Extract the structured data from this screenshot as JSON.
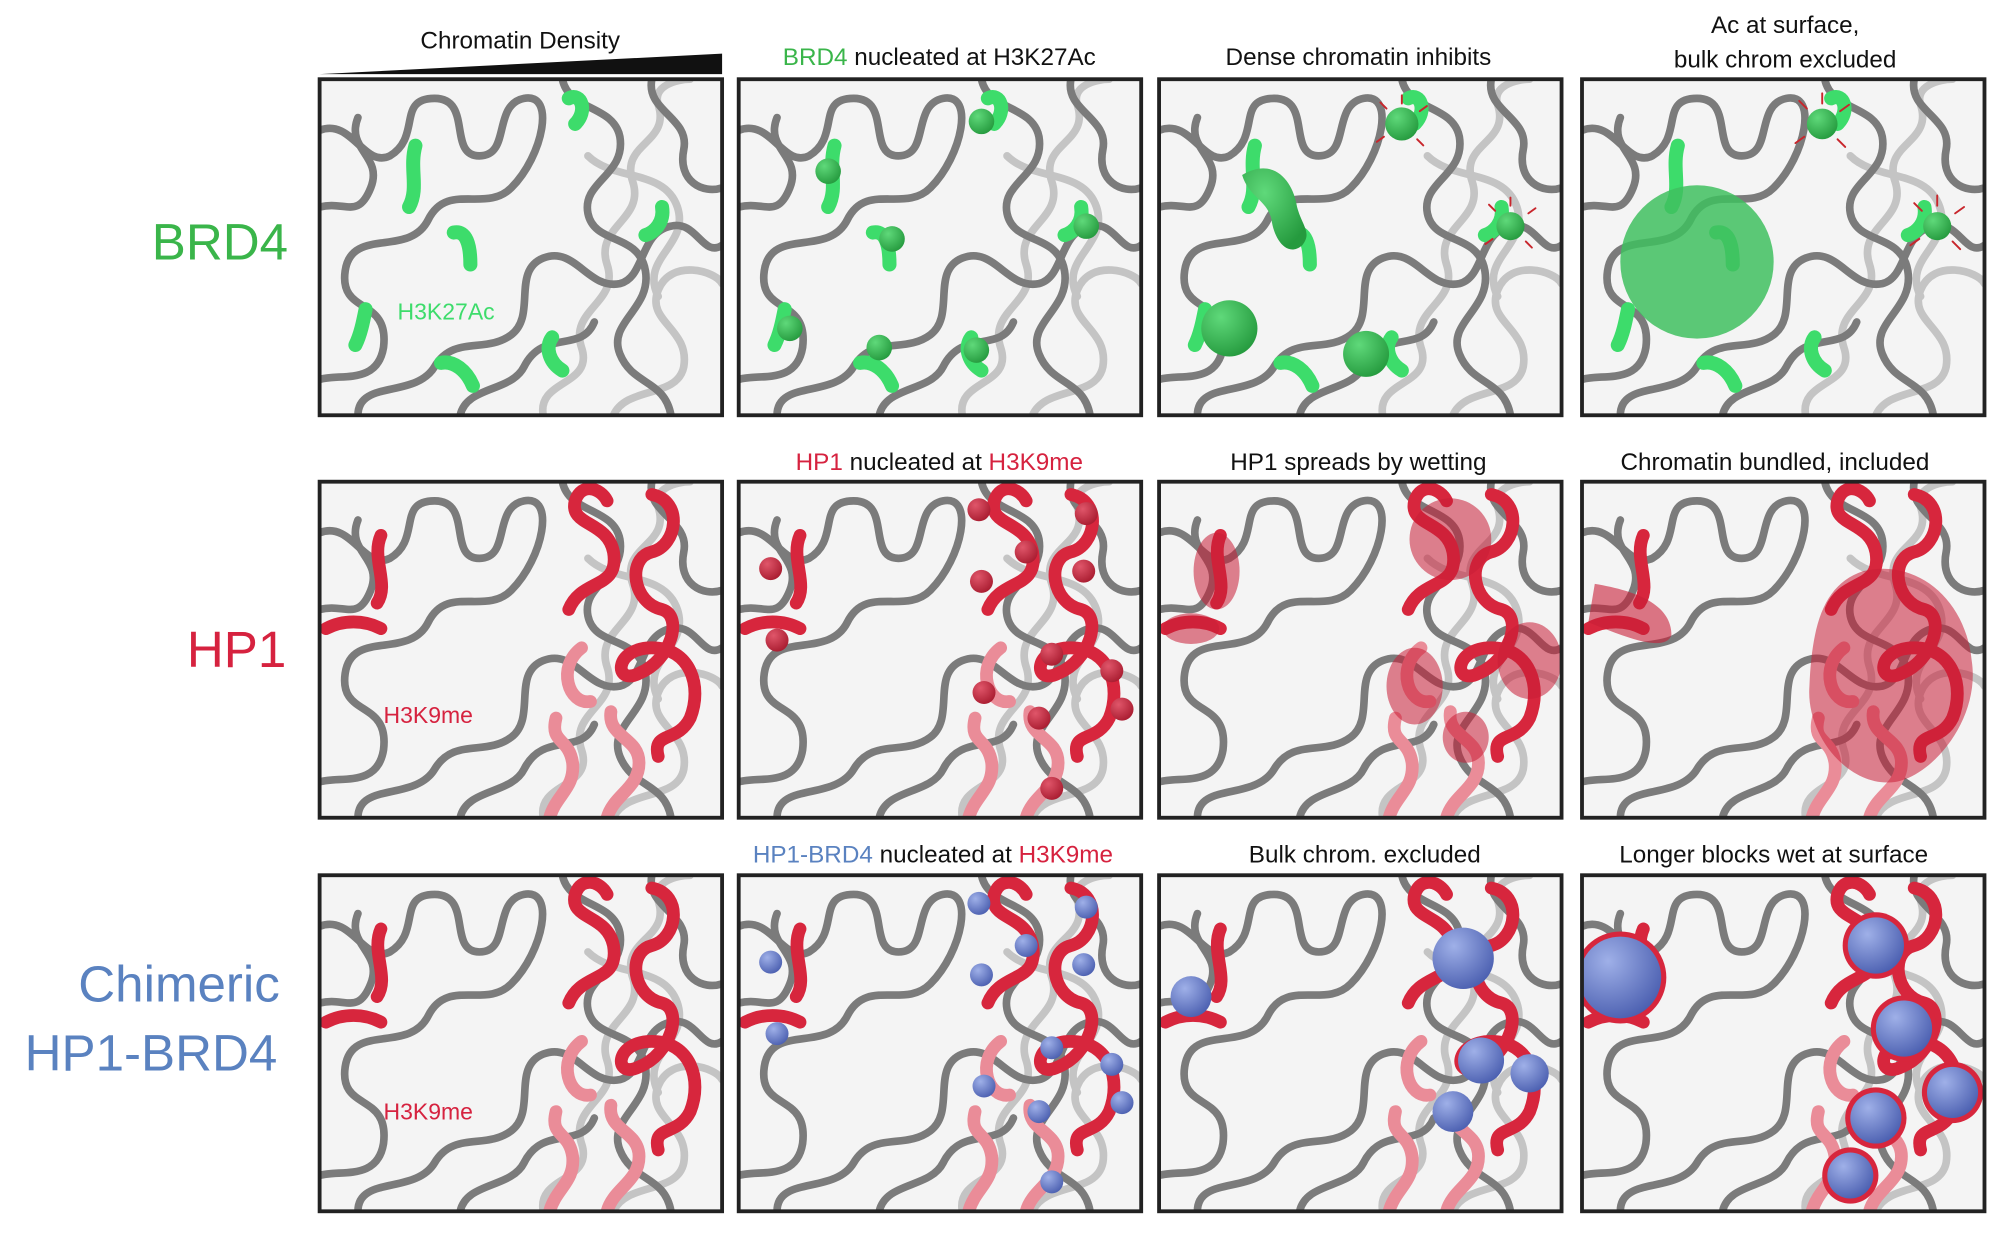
{
  "header": {
    "density_label": "Chromatin Density"
  },
  "rows": [
    {
      "label": [
        "BRD4"
      ],
      "panel_label": "H3K27Ac",
      "steps": [
        {
          "parts": [
            "BRD4",
            "nucleated at H3K27Ac"
          ]
        },
        {
          "parts": [
            "Dense chromatin inhibits"
          ]
        },
        {
          "lines": [
            "Ac at surface,",
            "bulk chrom excluded"
          ]
        }
      ]
    },
    {
      "label": [
        "HP1"
      ],
      "panel_label": "H3K9me",
      "steps": [
        {
          "parts": [
            "HP1",
            "nucleated at",
            "H3K9me"
          ]
        },
        {
          "parts": [
            "HP1 spreads by wetting"
          ]
        },
        {
          "parts": [
            "Chromatin bundled, included"
          ]
        }
      ]
    },
    {
      "label": [
        "Chimeric",
        "HP1-BRD4"
      ],
      "panel_label": "H3K9me",
      "steps": [
        {
          "parts": [
            "HP1-BRD4",
            "nucleated at",
            "H3K9me"
          ]
        },
        {
          "parts": [
            "Bulk chrom. excluded"
          ]
        },
        {
          "parts": [
            "Longer blocks wet at surface"
          ]
        }
      ]
    }
  ]
}
